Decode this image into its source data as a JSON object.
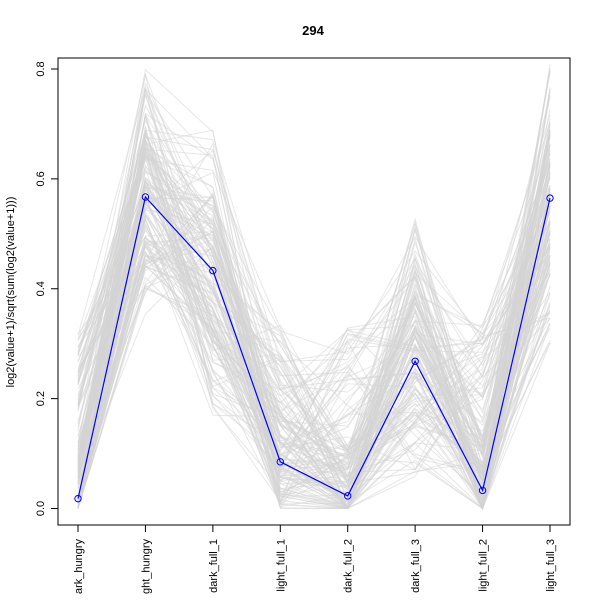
{
  "chart_data": {
    "type": "line",
    "title": "294",
    "ylabel": "log2(value+1)/sqrt(sum(log2(value+1)))",
    "xlabel": "",
    "categories": [
      "dark_hungry",
      "light_hungry",
      "dark_full_1",
      "light_full_1",
      "dark_full_2",
      "dark_full_3",
      "light_full_2",
      "light_full_3"
    ],
    "category_labels_visible": [
      "ark_hungry",
      "ght_hungry",
      "dark_full_1",
      "light_full_1",
      "dark_full_2",
      "dark_full_3",
      "light_full_2",
      "light_full_3"
    ],
    "yticks": [
      0.0,
      0.2,
      0.4,
      0.6,
      0.8
    ],
    "ytick_labels": [
      "0.0",
      "0.2",
      "0.4",
      "0.6",
      "0.8"
    ],
    "ylim": [
      -0.03,
      0.82
    ],
    "highlight_series": {
      "values": [
        0.018,
        0.567,
        0.433,
        0.085,
        0.023,
        0.268,
        0.033,
        0.565
      ],
      "color": "#0000ff"
    },
    "background_series_color": "#d3d3d3",
    "background_envelope": {
      "low": [
        0.0,
        0.33,
        0.16,
        0.0,
        0.0,
        0.05,
        0.0,
        0.3
      ],
      "high": [
        0.32,
        0.8,
        0.69,
        0.34,
        0.33,
        0.53,
        0.34,
        0.81
      ]
    },
    "grid": false,
    "legend": "none"
  }
}
